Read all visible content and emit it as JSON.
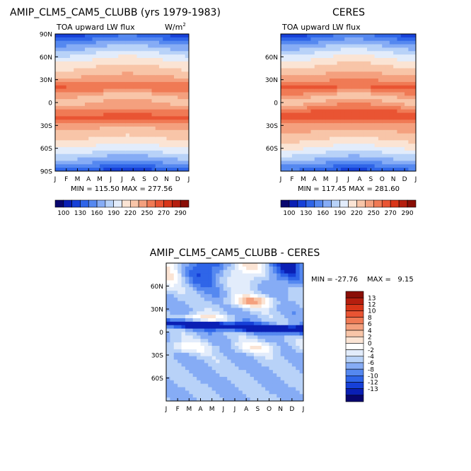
{
  "chart_data": [
    {
      "type": "heatmap",
      "title": "AMIP_CLM5_CAM5_CLUBB (yrs 1979-1983)",
      "subtitle": "TOA upward LW flux",
      "units_label": "W/m",
      "units_sup": "2",
      "stats": "MIN = 115.50 MAX = 277.56",
      "x_ticks": [
        "J",
        "F",
        "M",
        "A",
        "M",
        "J",
        "J",
        "A",
        "S",
        "O",
        "N",
        "D",
        "J"
      ],
      "y_ticks": [
        "90N",
        "60N",
        "30N",
        "0",
        "30S",
        "60S",
        "90S"
      ],
      "xlim": [
        0,
        12
      ],
      "ylim": [
        -90,
        90
      ],
      "colorbar_labels": [
        "100",
        "130",
        "160",
        "190",
        "220",
        "250",
        "270",
        "290"
      ]
    },
    {
      "type": "heatmap",
      "title": "CERES",
      "subtitle": "TOA upward LW flux",
      "stats": "MIN = 117.45 MAX = 281.60",
      "x_ticks": [
        "J",
        "F",
        "M",
        "A",
        "M",
        "J",
        "J",
        "A",
        "S",
        "O",
        "N",
        "D",
        "J"
      ],
      "y_ticks": [
        "60N",
        "30N",
        "0",
        "30S",
        "60S"
      ],
      "xlim": [
        0,
        12
      ],
      "ylim": [
        -90,
        90
      ],
      "colorbar_labels": [
        "100",
        "130",
        "160",
        "190",
        "220",
        "250",
        "270",
        "290"
      ]
    },
    {
      "type": "heatmap",
      "title": "AMIP_CLM5_CAM5_CLUBB - CERES",
      "stats_min": "MIN = -27.76",
      "stats_max": "MAX =   9.15",
      "x_ticks": [
        "J",
        "F",
        "M",
        "A",
        "M",
        "J",
        "J",
        "A",
        "S",
        "O",
        "N",
        "D",
        "J"
      ],
      "y_ticks": [
        "60N",
        "30N",
        "0",
        "30S",
        "60S"
      ],
      "xlim": [
        0,
        12
      ],
      "ylim": [
        -90,
        90
      ],
      "colorbar_labels": [
        "13",
        "12",
        "10",
        "8",
        "6",
        "4",
        "2",
        "0",
        "-2",
        "-4",
        "-6",
        "-8",
        "-10",
        "-12",
        "-13"
      ]
    }
  ],
  "colors": {
    "flux_scale": [
      "#08066e",
      "#0a1fb4",
      "#1640d8",
      "#2f65e8",
      "#5588f0",
      "#86acf5",
      "#b8d2f8",
      "#e2ecfb",
      "#fbe4d4",
      "#f8c5a8",
      "#f4a07e",
      "#f07a55",
      "#e95433",
      "#d83518",
      "#b51e0e",
      "#8a0e06"
    ],
    "diff_scale": [
      "#8a0e06",
      "#b51e0e",
      "#d83518",
      "#e95433",
      "#f07a55",
      "#f4a07e",
      "#f8c5a8",
      "#fbe4d4",
      "#ffffff",
      "#e2ecfb",
      "#b8d2f8",
      "#86acf5",
      "#5588f0",
      "#2f65e8",
      "#1640d8",
      "#0a1fb4",
      "#08066e"
    ]
  }
}
